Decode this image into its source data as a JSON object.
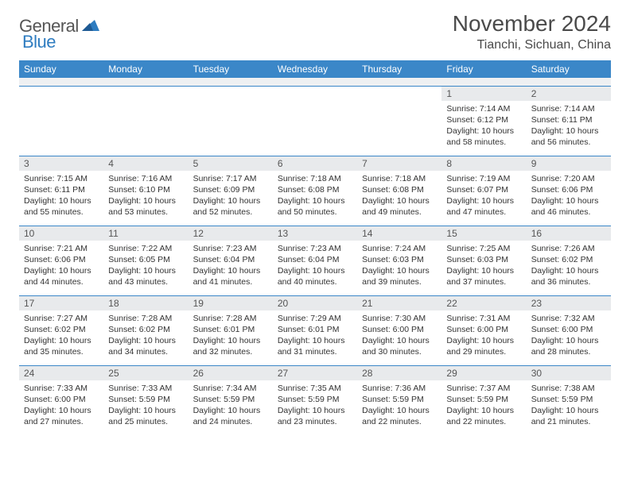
{
  "logo": {
    "text1": "General",
    "text2": "Blue"
  },
  "title": "November 2024",
  "location": "Tianchi, Sichuan, China",
  "colors": {
    "header_bg": "#3b87c8",
    "daynum_bg": "#e8eaec",
    "rule": "#3b87c8"
  },
  "weekdays": [
    "Sunday",
    "Monday",
    "Tuesday",
    "Wednesday",
    "Thursday",
    "Friday",
    "Saturday"
  ],
  "weeks": [
    [
      {
        "blank": true
      },
      {
        "blank": true
      },
      {
        "blank": true
      },
      {
        "blank": true
      },
      {
        "blank": true
      },
      {
        "n": "1",
        "sunrise": "Sunrise: 7:14 AM",
        "sunset": "Sunset: 6:12 PM",
        "daylight": "Daylight: 10 hours and 58 minutes."
      },
      {
        "n": "2",
        "sunrise": "Sunrise: 7:14 AM",
        "sunset": "Sunset: 6:11 PM",
        "daylight": "Daylight: 10 hours and 56 minutes."
      }
    ],
    [
      {
        "n": "3",
        "sunrise": "Sunrise: 7:15 AM",
        "sunset": "Sunset: 6:11 PM",
        "daylight": "Daylight: 10 hours and 55 minutes."
      },
      {
        "n": "4",
        "sunrise": "Sunrise: 7:16 AM",
        "sunset": "Sunset: 6:10 PM",
        "daylight": "Daylight: 10 hours and 53 minutes."
      },
      {
        "n": "5",
        "sunrise": "Sunrise: 7:17 AM",
        "sunset": "Sunset: 6:09 PM",
        "daylight": "Daylight: 10 hours and 52 minutes."
      },
      {
        "n": "6",
        "sunrise": "Sunrise: 7:18 AM",
        "sunset": "Sunset: 6:08 PM",
        "daylight": "Daylight: 10 hours and 50 minutes."
      },
      {
        "n": "7",
        "sunrise": "Sunrise: 7:18 AM",
        "sunset": "Sunset: 6:08 PM",
        "daylight": "Daylight: 10 hours and 49 minutes."
      },
      {
        "n": "8",
        "sunrise": "Sunrise: 7:19 AM",
        "sunset": "Sunset: 6:07 PM",
        "daylight": "Daylight: 10 hours and 47 minutes."
      },
      {
        "n": "9",
        "sunrise": "Sunrise: 7:20 AM",
        "sunset": "Sunset: 6:06 PM",
        "daylight": "Daylight: 10 hours and 46 minutes."
      }
    ],
    [
      {
        "n": "10",
        "sunrise": "Sunrise: 7:21 AM",
        "sunset": "Sunset: 6:06 PM",
        "daylight": "Daylight: 10 hours and 44 minutes."
      },
      {
        "n": "11",
        "sunrise": "Sunrise: 7:22 AM",
        "sunset": "Sunset: 6:05 PM",
        "daylight": "Daylight: 10 hours and 43 minutes."
      },
      {
        "n": "12",
        "sunrise": "Sunrise: 7:23 AM",
        "sunset": "Sunset: 6:04 PM",
        "daylight": "Daylight: 10 hours and 41 minutes."
      },
      {
        "n": "13",
        "sunrise": "Sunrise: 7:23 AM",
        "sunset": "Sunset: 6:04 PM",
        "daylight": "Daylight: 10 hours and 40 minutes."
      },
      {
        "n": "14",
        "sunrise": "Sunrise: 7:24 AM",
        "sunset": "Sunset: 6:03 PM",
        "daylight": "Daylight: 10 hours and 39 minutes."
      },
      {
        "n": "15",
        "sunrise": "Sunrise: 7:25 AM",
        "sunset": "Sunset: 6:03 PM",
        "daylight": "Daylight: 10 hours and 37 minutes."
      },
      {
        "n": "16",
        "sunrise": "Sunrise: 7:26 AM",
        "sunset": "Sunset: 6:02 PM",
        "daylight": "Daylight: 10 hours and 36 minutes."
      }
    ],
    [
      {
        "n": "17",
        "sunrise": "Sunrise: 7:27 AM",
        "sunset": "Sunset: 6:02 PM",
        "daylight": "Daylight: 10 hours and 35 minutes."
      },
      {
        "n": "18",
        "sunrise": "Sunrise: 7:28 AM",
        "sunset": "Sunset: 6:02 PM",
        "daylight": "Daylight: 10 hours and 34 minutes."
      },
      {
        "n": "19",
        "sunrise": "Sunrise: 7:28 AM",
        "sunset": "Sunset: 6:01 PM",
        "daylight": "Daylight: 10 hours and 32 minutes."
      },
      {
        "n": "20",
        "sunrise": "Sunrise: 7:29 AM",
        "sunset": "Sunset: 6:01 PM",
        "daylight": "Daylight: 10 hours and 31 minutes."
      },
      {
        "n": "21",
        "sunrise": "Sunrise: 7:30 AM",
        "sunset": "Sunset: 6:00 PM",
        "daylight": "Daylight: 10 hours and 30 minutes."
      },
      {
        "n": "22",
        "sunrise": "Sunrise: 7:31 AM",
        "sunset": "Sunset: 6:00 PM",
        "daylight": "Daylight: 10 hours and 29 minutes."
      },
      {
        "n": "23",
        "sunrise": "Sunrise: 7:32 AM",
        "sunset": "Sunset: 6:00 PM",
        "daylight": "Daylight: 10 hours and 28 minutes."
      }
    ],
    [
      {
        "n": "24",
        "sunrise": "Sunrise: 7:33 AM",
        "sunset": "Sunset: 6:00 PM",
        "daylight": "Daylight: 10 hours and 27 minutes."
      },
      {
        "n": "25",
        "sunrise": "Sunrise: 7:33 AM",
        "sunset": "Sunset: 5:59 PM",
        "daylight": "Daylight: 10 hours and 25 minutes."
      },
      {
        "n": "26",
        "sunrise": "Sunrise: 7:34 AM",
        "sunset": "Sunset: 5:59 PM",
        "daylight": "Daylight: 10 hours and 24 minutes."
      },
      {
        "n": "27",
        "sunrise": "Sunrise: 7:35 AM",
        "sunset": "Sunset: 5:59 PM",
        "daylight": "Daylight: 10 hours and 23 minutes."
      },
      {
        "n": "28",
        "sunrise": "Sunrise: 7:36 AM",
        "sunset": "Sunset: 5:59 PM",
        "daylight": "Daylight: 10 hours and 22 minutes."
      },
      {
        "n": "29",
        "sunrise": "Sunrise: 7:37 AM",
        "sunset": "Sunset: 5:59 PM",
        "daylight": "Daylight: 10 hours and 22 minutes."
      },
      {
        "n": "30",
        "sunrise": "Sunrise: 7:38 AM",
        "sunset": "Sunset: 5:59 PM",
        "daylight": "Daylight: 10 hours and 21 minutes."
      }
    ]
  ]
}
